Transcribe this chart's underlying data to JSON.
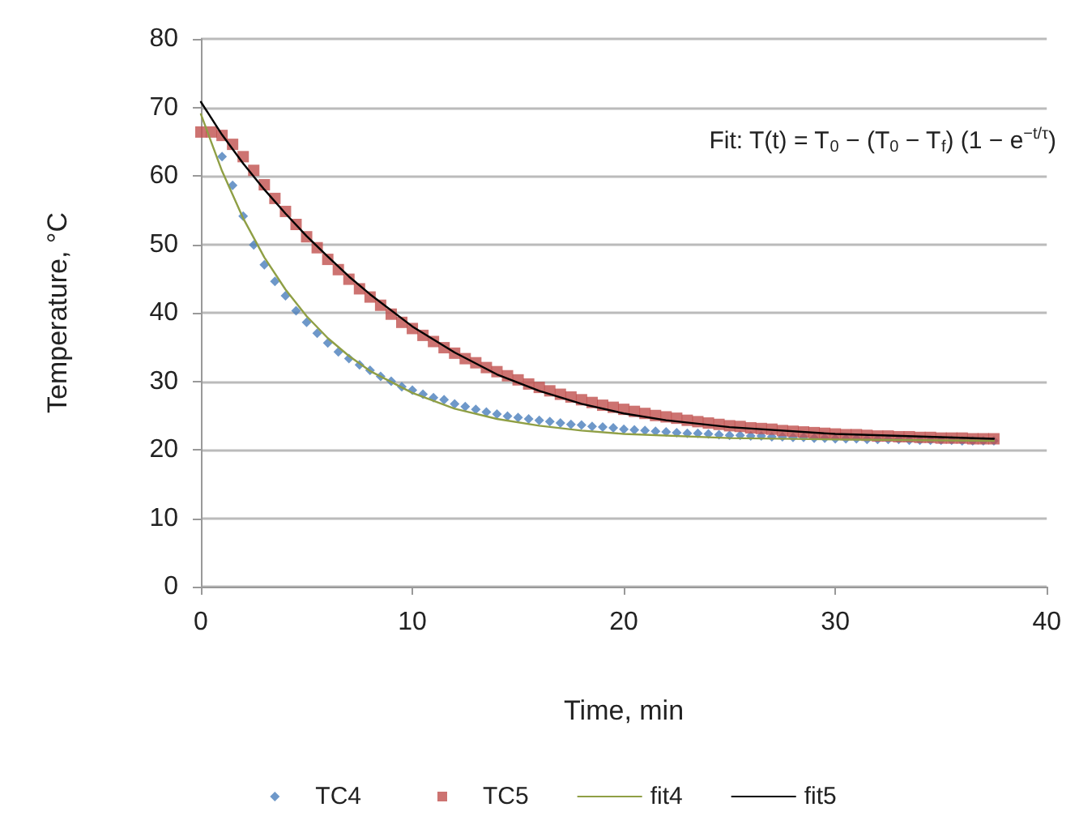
{
  "chart_data": {
    "type": "scatter",
    "xlabel": "Time, min",
    "ylabel": "Temperature, °C",
    "annotations": [
      "Fit: T(t) = T$_{0}$ − (T$_{0}$ − T$_{f}$) (1 − e$^{−t/τ}$)"
    ],
    "x": [
      0,
      0.5,
      1,
      1.5,
      2,
      2.5,
      3,
      3.5,
      4,
      4.5,
      5,
      5.5,
      6,
      6.5,
      7,
      7.5,
      8,
      8.5,
      9,
      9.5,
      10,
      10.5,
      11,
      11.5,
      12,
      12.5,
      13,
      13.5,
      14,
      14.5,
      15,
      15.5,
      16,
      16.5,
      17,
      17.5,
      18,
      18.5,
      19,
      19.5,
      20,
      20.5,
      21,
      21.5,
      22,
      22.5,
      23,
      23.5,
      24,
      24.5,
      25,
      25.5,
      26,
      26.5,
      27,
      27.5,
      28,
      28.5,
      29,
      29.5,
      30,
      30.5,
      31,
      31.5,
      32,
      32.5,
      33,
      33.5,
      34,
      34.5,
      35,
      35.5,
      36,
      36.5,
      37,
      37.5
    ],
    "series": [
      {
        "name": "TC4",
        "marker": "diamond",
        "color": "#4a7ebb",
        "values": [
          null,
          null,
          62.8,
          58.6,
          54.1,
          49.9,
          47.0,
          44.6,
          42.5,
          40.3,
          38.6,
          37.0,
          35.6,
          34.3,
          33.3,
          32.4,
          31.6,
          30.7,
          30.0,
          29.2,
          28.7,
          28.1,
          27.6,
          27.3,
          26.7,
          26.3,
          25.9,
          25.5,
          25.2,
          24.9,
          24.7,
          24.5,
          24.3,
          24.1,
          23.9,
          23.7,
          23.6,
          23.4,
          23.3,
          23.2,
          23.0,
          22.9,
          22.8,
          22.7,
          22.6,
          22.5,
          22.4,
          22.4,
          22.3,
          22.2,
          22.1,
          22.1,
          22.0,
          22.0,
          21.9,
          21.9,
          21.8,
          21.8,
          21.7,
          21.7,
          21.6,
          21.6,
          21.6,
          21.5,
          21.5,
          21.5,
          21.5,
          21.4,
          21.4,
          21.4,
          21.4,
          21.4,
          21.3,
          21.3,
          21.3,
          21.3
        ]
      },
      {
        "name": "TC5",
        "marker": "square",
        "color": "#c0504d",
        "values": [
          66.4,
          66.4,
          65.9,
          64.6,
          62.8,
          60.8,
          58.7,
          56.7,
          54.8,
          52.9,
          51.1,
          49.5,
          47.8,
          46.3,
          44.9,
          43.5,
          42.3,
          41.1,
          39.8,
          38.6,
          37.7,
          36.7,
          35.8,
          34.9,
          34.1,
          33.3,
          32.7,
          32.0,
          31.4,
          30.8,
          30.2,
          29.6,
          29.1,
          28.6,
          28.1,
          27.7,
          27.3,
          26.9,
          26.5,
          26.2,
          25.9,
          25.6,
          25.3,
          25.0,
          24.8,
          24.6,
          24.3,
          24.1,
          23.9,
          23.7,
          23.5,
          23.4,
          23.2,
          23.1,
          23.0,
          22.8,
          22.7,
          22.6,
          22.5,
          22.4,
          22.3,
          22.2,
          22.2,
          22.1,
          22.0,
          22.0,
          21.9,
          21.9,
          21.8,
          21.8,
          21.7,
          21.7,
          21.7,
          21.6,
          21.6,
          21.6
        ]
      },
      {
        "name": "fit4",
        "type": "line",
        "marker": "none",
        "color": "#8f9f45",
        "x": [
          0,
          1,
          2,
          3,
          4,
          5,
          6,
          7,
          8,
          10,
          12,
          14,
          16,
          18,
          20,
          25,
          30,
          37.5
        ],
        "values": [
          69.0,
          60.7,
          53.8,
          48.1,
          43.4,
          39.5,
          36.3,
          33.7,
          31.5,
          28.3,
          26.0,
          24.5,
          23.5,
          22.8,
          22.3,
          21.7,
          21.5,
          21.3
        ]
      },
      {
        "name": "fit5",
        "type": "line",
        "marker": "none",
        "color": "#000000",
        "x": [
          0,
          1,
          2,
          3,
          4,
          5,
          6,
          7,
          8,
          10,
          12,
          14,
          16,
          18,
          20,
          22,
          25,
          30,
          37.5
        ],
        "values": [
          70.8,
          66.0,
          61.8,
          58.0,
          54.5,
          51.2,
          48.2,
          45.3,
          42.7,
          38.0,
          34.2,
          31.0,
          28.6,
          26.7,
          25.3,
          24.3,
          23.3,
          22.3,
          21.6
        ]
      }
    ],
    "xlim": [
      0,
      40
    ],
    "xticks": [
      0,
      10,
      20,
      30,
      40
    ],
    "ylim": [
      0,
      80
    ],
    "yticks": [
      0,
      10,
      20,
      30,
      40,
      50,
      60,
      70,
      80
    ],
    "grid": "y",
    "legend": "bottom"
  }
}
